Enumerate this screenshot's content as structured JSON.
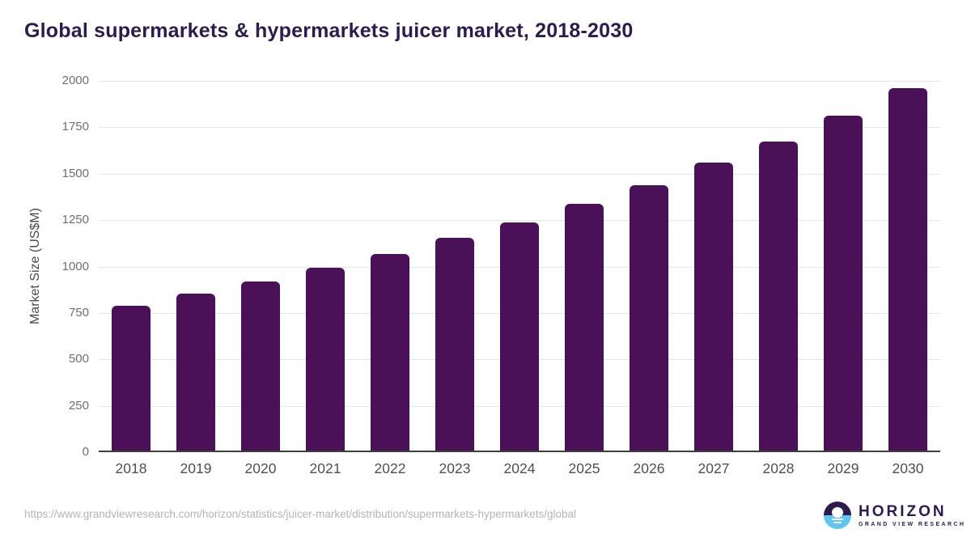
{
  "chart_data": {
    "type": "bar",
    "title": "Global supermarkets & hypermarkets juicer market, 2018-2030",
    "categories": [
      "2018",
      "2019",
      "2020",
      "2021",
      "2022",
      "2023",
      "2024",
      "2025",
      "2026",
      "2027",
      "2028",
      "2029",
      "2030"
    ],
    "values": [
      780,
      845,
      910,
      985,
      1060,
      1145,
      1230,
      1330,
      1430,
      1550,
      1665,
      1805,
      1950
    ],
    "xlabel": "",
    "ylabel": "Market Size (US$M)",
    "ylim": [
      0,
      2000
    ],
    "yticks": [
      0,
      250,
      500,
      750,
      1000,
      1250,
      1500,
      1750,
      2000
    ],
    "grid": true,
    "legend": "none",
    "bar_color": "#4a1158"
  },
  "colors": {
    "title_text": "#2d1b4e",
    "bar": "#4a1158",
    "gridline": "#e6e6ea",
    "axis_line": "#3e3e40",
    "tick_text": "#6e6e71",
    "category_text": "#4f4f52",
    "source_text": "#b4b4b6",
    "logo_purple": "#2d1b4e",
    "logo_blue": "#5ec6f2"
  },
  "footer": {
    "source_url": "https://www.grandviewresearch.com/horizon/statistics/juicer-market/distribution/supermarkets-hypermarkets/global",
    "logo": {
      "name": "HORIZON",
      "subtitle": "GRAND VIEW RESEARCH"
    }
  }
}
